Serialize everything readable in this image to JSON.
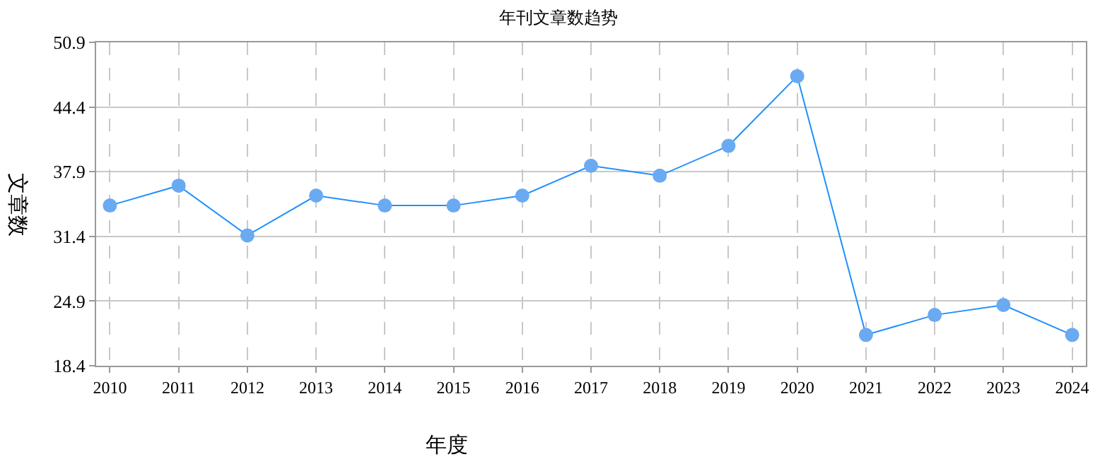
{
  "chart_data": {
    "type": "line",
    "title": "年刊文章数趋势",
    "xlabel": "年度",
    "ylabel": "文章数",
    "categories": [
      "2010",
      "2011",
      "2012",
      "2013",
      "2014",
      "2015",
      "2016",
      "2017",
      "2018",
      "2019",
      "2020",
      "2021",
      "2022",
      "2023",
      "2024"
    ],
    "series": [
      {
        "color": "#1e90ff",
        "values": [
          34.5,
          36.5,
          31.5,
          35.5,
          34.5,
          34.5,
          35.5,
          38.5,
          37.5,
          40.5,
          47.5,
          21.5,
          23.5,
          24.5,
          21.5
        ]
      }
    ],
    "ylim": [
      18.4,
      50.9
    ],
    "yticks": [
      18.4,
      24.9,
      31.4,
      37.9,
      44.4,
      50.9
    ],
    "grid": true,
    "marker": "circle",
    "line_style": "solid",
    "legend": false
  }
}
